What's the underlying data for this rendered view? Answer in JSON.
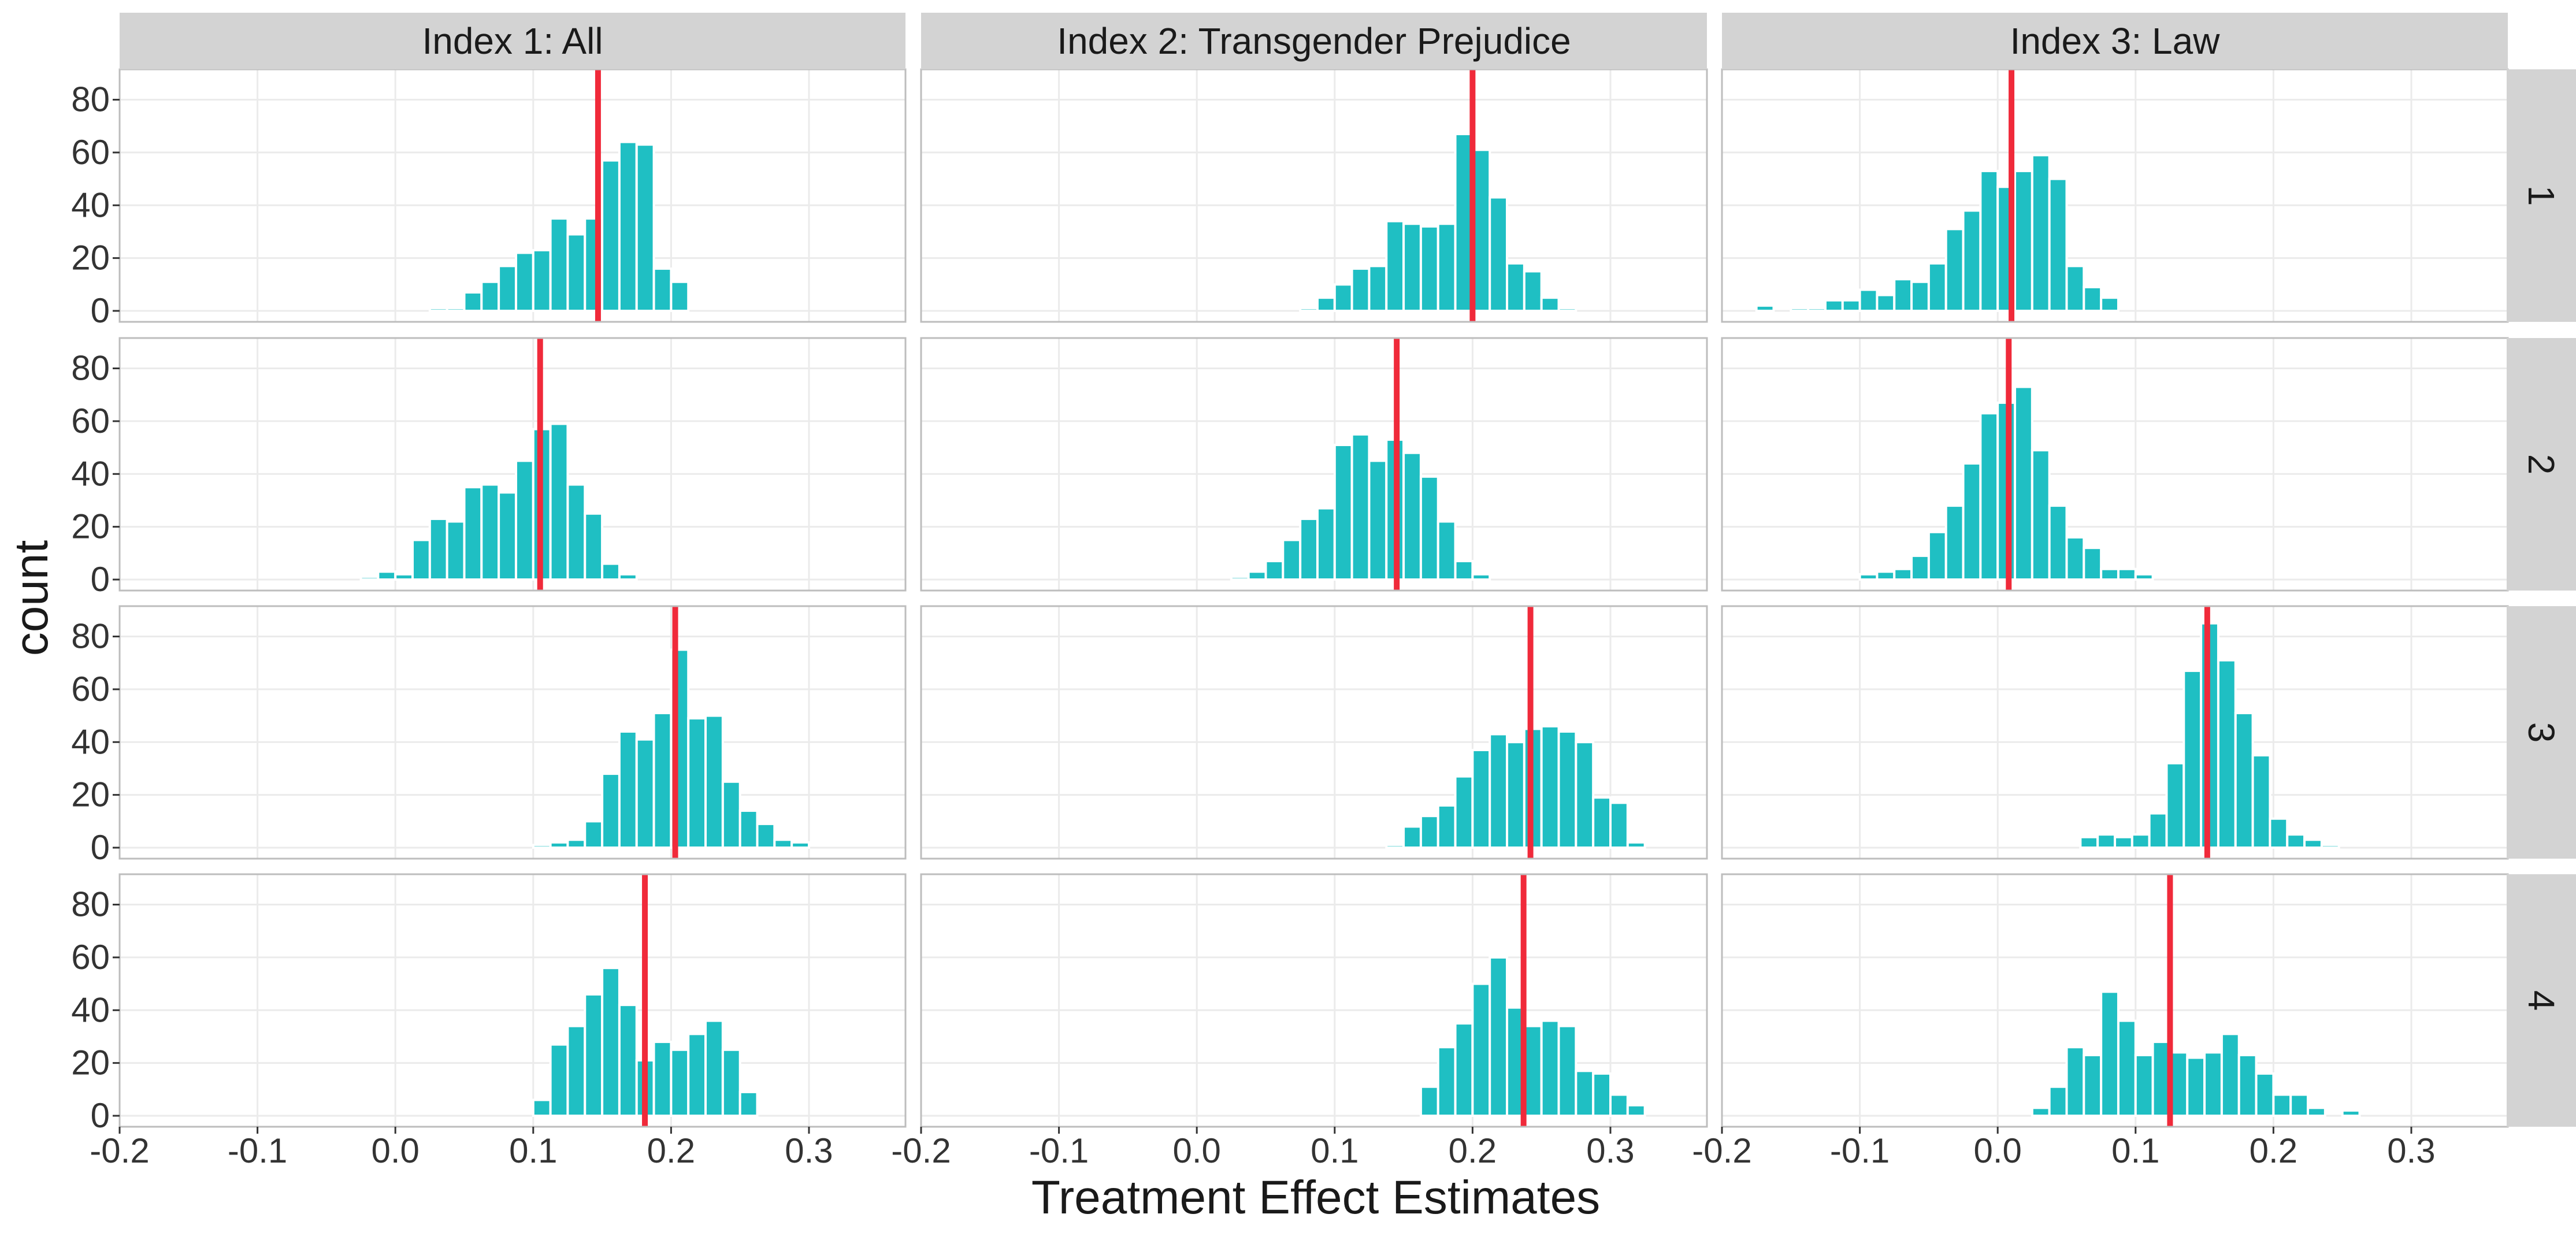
{
  "chart_data": {
    "type": "bar",
    "kind": "faceted-histogram",
    "xlabel": "Treatment Effect Estimates",
    "ylabel": "count",
    "xlim": [
      -0.2,
      0.37
    ],
    "ylim": [
      0,
      88
    ],
    "x_ticks": [
      -0.2,
      -0.1,
      0.0,
      0.1,
      0.2,
      0.3
    ],
    "x_tick_labels": [
      "-0.2",
      "-0.1",
      "0.0",
      "0.1",
      "0.2",
      "0.3"
    ],
    "y_ticks": [
      0,
      20,
      40,
      60,
      80
    ],
    "y_tick_labels": [
      "0",
      "20",
      "40",
      "60",
      "80"
    ],
    "bin_width": 0.0125,
    "grid": true,
    "legend": "none",
    "colors": {
      "bar_fill": "#1FBFC3",
      "bar_outline": "#ffffff",
      "reference_line": "#F02A3A",
      "panel_background": "#ffffff",
      "panel_border": "#BDBDBD",
      "grid_major": "#EBEBEB",
      "strip_background": "#D3D3D3",
      "text": "#1A1A1A",
      "tick_text": "#333333"
    },
    "col_facets": [
      "Index 1: All",
      "Index 2: Transgender Prejudice",
      "Index 3: Law"
    ],
    "row_facets": [
      "1",
      "2",
      "3",
      "4"
    ],
    "panels": [
      {
        "row": "1",
        "col": "Index 1: All",
        "reference_line": 0.147,
        "bin_start": 0.025,
        "counts": [
          1,
          1,
          7,
          11,
          17,
          22,
          23,
          35,
          29,
          35,
          57,
          64,
          63,
          16,
          11
        ]
      },
      {
        "row": "1",
        "col": "Index 2: Transgender Prejudice",
        "reference_line": 0.2,
        "bin_start": 0.075,
        "counts": [
          1,
          5,
          10,
          16,
          17,
          34,
          33,
          32,
          33,
          67,
          61,
          43,
          18,
          15,
          5,
          1
        ]
      },
      {
        "row": "1",
        "col": "Index 3: Law",
        "reference_line": 0.01,
        "bin_start": -0.175,
        "counts": [
          2,
          0,
          1,
          1,
          4,
          4,
          8,
          6,
          12,
          11,
          18,
          31,
          38,
          53,
          47,
          53,
          59,
          50,
          17,
          9,
          5
        ]
      },
      {
        "row": "2",
        "col": "Index 1: All",
        "reference_line": 0.105,
        "bin_start": -0.025,
        "counts": [
          1,
          3,
          2,
          15,
          23,
          22,
          35,
          36,
          33,
          45,
          57,
          59,
          36,
          25,
          6,
          2
        ]
      },
      {
        "row": "2",
        "col": "Index 2: Transgender Prejudice",
        "reference_line": 0.145,
        "bin_start": 0.025,
        "counts": [
          1,
          3,
          7,
          15,
          23,
          27,
          51,
          55,
          45,
          53,
          48,
          39,
          22,
          7,
          2
        ]
      },
      {
        "row": "2",
        "col": "Index 3: Law",
        "reference_line": 0.008,
        "bin_start": -0.1,
        "counts": [
          2,
          3,
          4,
          9,
          18,
          28,
          44,
          63,
          67,
          73,
          49,
          28,
          16,
          12,
          4,
          4,
          2
        ]
      },
      {
        "row": "3",
        "col": "Index 1: All",
        "reference_line": 0.203,
        "bin_start": 0.1,
        "counts": [
          1,
          2,
          3,
          10,
          28,
          44,
          41,
          51,
          75,
          49,
          50,
          25,
          14,
          9,
          3,
          2
        ]
      },
      {
        "row": "3",
        "col": "Index 2: Transgender Prejudice",
        "reference_line": 0.242,
        "bin_start": 0.1375,
        "counts": [
          1,
          8,
          12,
          16,
          27,
          37,
          43,
          40,
          45,
          46,
          44,
          40,
          19,
          17,
          2
        ]
      },
      {
        "row": "3",
        "col": "Index 3: Law",
        "reference_line": 0.152,
        "bin_start": 0.06,
        "counts": [
          4,
          5,
          4,
          5,
          13,
          32,
          67,
          85,
          71,
          51,
          35,
          11,
          5,
          3,
          1
        ]
      },
      {
        "row": "4",
        "col": "Index 1: All",
        "reference_line": 0.181,
        "bin_start": 0.1,
        "counts": [
          6,
          27,
          34,
          46,
          56,
          42,
          21,
          28,
          25,
          31,
          36,
          25,
          9
        ]
      },
      {
        "row": "4",
        "col": "Index 2: Transgender Prejudice",
        "reference_line": 0.237,
        "bin_start": 0.1625,
        "counts": [
          11,
          26,
          35,
          50,
          60,
          41,
          34,
          36,
          34,
          17,
          16,
          8,
          4
        ]
      },
      {
        "row": "4",
        "col": "Index 3: Law",
        "reference_line": 0.125,
        "bin_start": 0.025,
        "counts": [
          3,
          11,
          26,
          23,
          47,
          36,
          23,
          28,
          24,
          22,
          24,
          31,
          23,
          16,
          8,
          8,
          3,
          0,
          2
        ]
      }
    ]
  }
}
